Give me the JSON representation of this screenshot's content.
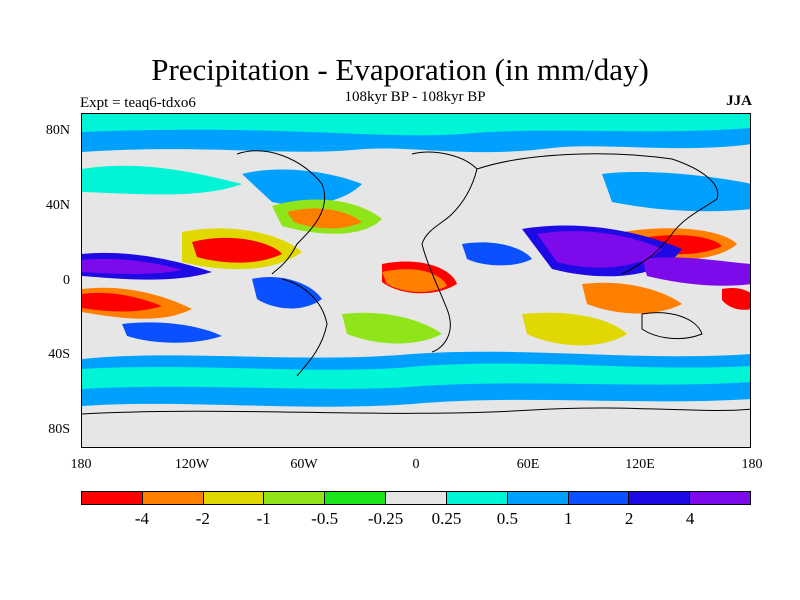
{
  "header": {
    "title": "Precipitation - Evaporation (in mm/day)",
    "subtitle": "108kyr BP - 108kyr BP",
    "left_label": "Expt = teaq6-tdxo6",
    "right_label": "JJA"
  },
  "map": {
    "lat_ticks": [
      "80N",
      "40N",
      "0",
      "40S",
      "80S"
    ],
    "lon_ticks": [
      "180",
      "120W",
      "60W",
      "0",
      "60E",
      "120E",
      "180"
    ]
  },
  "colorbar": {
    "colors": [
      "#ff0000",
      "#ff7f00",
      "#e0d800",
      "#8fe51a",
      "#1ae51a",
      "#e6e6e6",
      "#00f5d6",
      "#00a0ff",
      "#0a50ff",
      "#1e0ae5",
      "#7d0aeb"
    ],
    "labels": [
      "-4",
      "-2",
      "-1",
      "-0.5",
      "-0.25",
      "0.25",
      "0.5",
      "1",
      "2",
      "4"
    ]
  }
}
